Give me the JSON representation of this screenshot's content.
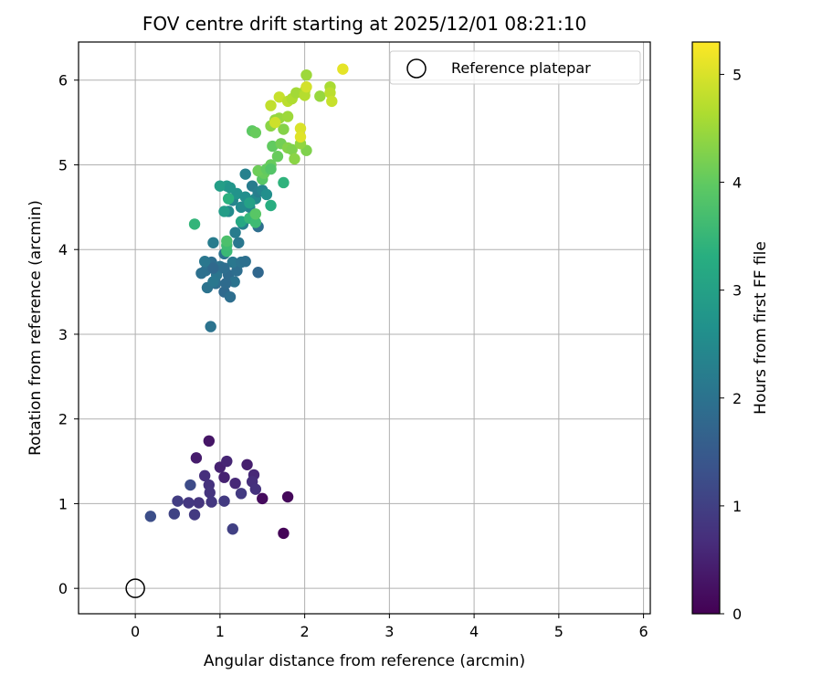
{
  "chart_data": {
    "type": "scatter",
    "title": "FOV centre drift starting at 2025/12/01 08:21:10",
    "xlabel": "Angular distance from reference (arcmin)",
    "ylabel": "Rotation from reference (arcmin)",
    "xlim": [
      -0.67,
      6.08
    ],
    "ylim": [
      -0.3,
      6.45
    ],
    "xticks": [
      "0",
      "1",
      "2",
      "3",
      "4",
      "5",
      "6"
    ],
    "yticks": [
      "0",
      "1",
      "2",
      "3",
      "4",
      "5",
      "6"
    ],
    "grid": true,
    "legend": {
      "position": "top-right",
      "entries": [
        "Reference platepar"
      ]
    },
    "reference_point": {
      "x": 0,
      "y": 0,
      "marker": "hollow-circle",
      "color": "#000000"
    },
    "colorbar": {
      "label": "Hours from first FF file",
      "range": [
        0,
        5.3
      ],
      "ticks": [
        "0",
        "1",
        "2",
        "3",
        "4",
        "5"
      ],
      "colormap": "viridis"
    },
    "points": [
      [
        1.75,
        0.65,
        0.05
      ],
      [
        1.8,
        1.08,
        0.1
      ],
      [
        1.5,
        1.06,
        0.15
      ],
      [
        0.87,
        1.74,
        0.3
      ],
      [
        0.72,
        1.54,
        0.4
      ],
      [
        1.05,
        1.31,
        0.5
      ],
      [
        1.0,
        1.43,
        0.5
      ],
      [
        1.08,
        1.5,
        0.55
      ],
      [
        1.32,
        1.46,
        0.45
      ],
      [
        1.4,
        1.34,
        0.6
      ],
      [
        0.82,
        1.33,
        0.7
      ],
      [
        0.87,
        1.22,
        0.75
      ],
      [
        0.88,
        1.13,
        0.8
      ],
      [
        0.9,
        1.02,
        0.85
      ],
      [
        1.05,
        1.03,
        0.9
      ],
      [
        1.18,
        1.24,
        0.6
      ],
      [
        1.25,
        1.12,
        0.9
      ],
      [
        1.38,
        1.26,
        0.7
      ],
      [
        1.42,
        1.17,
        0.75
      ],
      [
        1.15,
        0.7,
        1.0
      ],
      [
        0.7,
        0.87,
        0.9
      ],
      [
        0.63,
        1.01,
        0.85
      ],
      [
        0.75,
        1.01,
        0.8
      ],
      [
        0.5,
        1.03,
        0.95
      ],
      [
        0.46,
        0.88,
        1.05
      ],
      [
        0.18,
        0.85,
        1.25
      ],
      [
        0.65,
        1.22,
        1.2
      ],
      [
        0.89,
        3.09,
        2.0
      ],
      [
        0.85,
        3.55,
        2.0
      ],
      [
        0.95,
        3.6,
        1.9
      ],
      [
        1.05,
        3.5,
        1.8
      ],
      [
        1.12,
        3.44,
        1.9
      ],
      [
        0.83,
        3.75,
        1.95
      ],
      [
        0.9,
        3.85,
        1.9
      ],
      [
        1.0,
        3.8,
        2.0
      ],
      [
        1.1,
        3.7,
        1.85
      ],
      [
        1.2,
        3.75,
        1.9
      ],
      [
        0.96,
        3.7,
        2.05
      ],
      [
        0.92,
        3.78,
        1.8
      ],
      [
        1.15,
        3.85,
        2.1
      ],
      [
        1.25,
        3.85,
        2.0
      ],
      [
        1.3,
        3.86,
        1.95
      ],
      [
        1.05,
        3.95,
        2.0
      ],
      [
        0.82,
        3.86,
        2.1
      ],
      [
        0.78,
        3.72,
        1.95
      ],
      [
        1.17,
        3.62,
        2.0
      ],
      [
        1.07,
        3.6,
        1.85
      ],
      [
        0.92,
        3.62,
        2.1
      ],
      [
        1.45,
        3.73,
        1.75
      ],
      [
        1.22,
        4.08,
        2.1
      ],
      [
        0.92,
        4.08,
        2.2
      ],
      [
        1.05,
        3.78,
        1.9
      ],
      [
        1.18,
        4.2,
        2.2
      ],
      [
        1.45,
        4.27,
        1.9
      ],
      [
        1.27,
        4.3,
        2.3
      ],
      [
        1.35,
        4.5,
        2.35
      ],
      [
        1.38,
        4.75,
        2.2
      ],
      [
        1.3,
        4.89,
        2.3
      ],
      [
        1.42,
        4.6,
        2.5
      ],
      [
        1.45,
        4.68,
        2.25
      ],
      [
        1.5,
        4.7,
        2.4
      ],
      [
        1.55,
        4.65,
        2.6
      ],
      [
        1.25,
        4.5,
        2.5
      ],
      [
        1.15,
        4.58,
        2.4
      ],
      [
        1.1,
        4.45,
        2.5
      ],
      [
        1.2,
        4.66,
        2.7
      ],
      [
        1.05,
        4.45,
        2.9
      ],
      [
        1.08,
        4.75,
        2.85
      ],
      [
        1.0,
        4.75,
        2.95
      ],
      [
        1.12,
        4.73,
        2.75
      ],
      [
        1.3,
        4.62,
        2.6
      ],
      [
        1.35,
        4.55,
        3.0
      ],
      [
        1.4,
        4.4,
        3.1
      ],
      [
        1.25,
        4.33,
        3.15
      ],
      [
        1.6,
        4.52,
        3.3
      ],
      [
        1.75,
        4.79,
        3.4
      ],
      [
        1.35,
        4.37,
        3.5
      ],
      [
        1.42,
        4.32,
        3.6
      ],
      [
        1.1,
        4.6,
        3.35
      ],
      [
        0.7,
        4.3,
        3.45
      ],
      [
        1.08,
        3.98,
        3.55
      ],
      [
        1.08,
        4.05,
        3.6
      ],
      [
        1.08,
        4.1,
        3.75
      ],
      [
        1.42,
        4.42,
        3.9
      ],
      [
        1.5,
        4.83,
        3.9
      ],
      [
        1.52,
        4.9,
        4.05
      ],
      [
        1.45,
        4.93,
        4.1
      ],
      [
        1.55,
        4.95,
        4.0
      ],
      [
        1.6,
        5.0,
        4.05
      ],
      [
        1.6,
        4.95,
        3.85
      ],
      [
        1.62,
        5.22,
        4.0
      ],
      [
        1.68,
        5.1,
        4.05
      ],
      [
        1.72,
        5.25,
        4.15
      ],
      [
        1.8,
        5.2,
        4.3
      ],
      [
        1.85,
        5.18,
        4.25
      ],
      [
        1.88,
        5.07,
        4.35
      ],
      [
        2.02,
        5.17,
        4.25
      ],
      [
        1.95,
        5.25,
        4.4
      ],
      [
        1.75,
        5.42,
        4.3
      ],
      [
        1.6,
        5.46,
        4.35
      ],
      [
        1.65,
        5.53,
        4.4
      ],
      [
        1.7,
        5.55,
        4.45
      ],
      [
        1.8,
        5.57,
        4.5
      ],
      [
        1.38,
        5.4,
        3.95
      ],
      [
        1.42,
        5.38,
        4.05
      ],
      [
        1.6,
        5.7,
        4.8
      ],
      [
        1.7,
        5.8,
        4.85
      ],
      [
        1.65,
        5.5,
        4.9
      ],
      [
        1.95,
        5.43,
        5.0
      ],
      [
        1.95,
        5.33,
        5.05
      ],
      [
        1.8,
        5.75,
        4.75
      ],
      [
        1.85,
        5.78,
        4.65
      ],
      [
        1.9,
        5.85,
        4.55
      ],
      [
        2.0,
        5.87,
        4.6
      ],
      [
        2.0,
        5.82,
        4.7
      ],
      [
        2.02,
        5.92,
        4.95
      ],
      [
        2.02,
        6.06,
        4.5
      ],
      [
        2.18,
        5.81,
        4.45
      ],
      [
        2.3,
        5.92,
        4.6
      ],
      [
        2.3,
        5.85,
        4.75
      ],
      [
        2.32,
        5.75,
        4.85
      ],
      [
        2.45,
        6.13,
        5.1
      ]
    ]
  }
}
